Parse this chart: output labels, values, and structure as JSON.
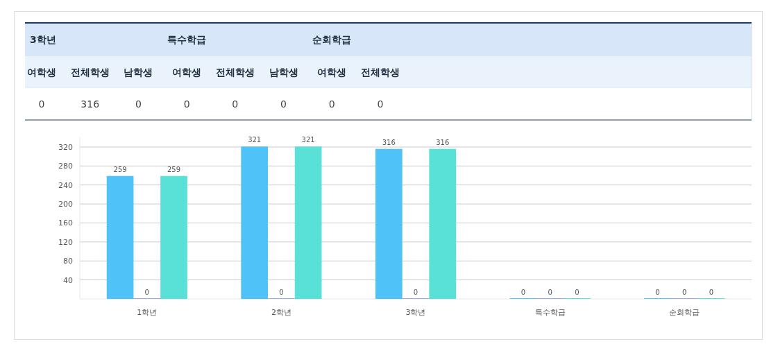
{
  "chart_data": [
    {
      "type": "other",
      "annotations": [
        "3학년",
        "특수학급",
        "순회학급"
      ],
      "categories": [
        "여학생",
        "전체학생",
        "남학생",
        "여학생",
        "전체학생",
        "남학생",
        "여학생",
        "전체학생"
      ],
      "values": [
        0,
        316,
        0,
        0,
        0,
        0,
        0,
        0
      ],
      "data_labels": true
    },
    {
      "type": "bar",
      "categories": [
        "1학년",
        "2학년",
        "3학년",
        "특수학급",
        "순회학급"
      ],
      "series": [
        {
          "color": "#4fc3f7",
          "values": [
            259,
            321,
            316,
            0,
            0
          ]
        },
        {
          "color": "#9fa8da",
          "values": [
            0,
            0,
            0,
            0,
            0
          ]
        },
        {
          "color": "#59e0d7",
          "values": [
            259,
            321,
            316,
            0,
            0
          ]
        }
      ],
      "ylim": [
        0,
        340
      ],
      "yticks": [
        40,
        80,
        120,
        160,
        200,
        240,
        280,
        320
      ],
      "grid": "y",
      "data_labels": true
    }
  ]
}
